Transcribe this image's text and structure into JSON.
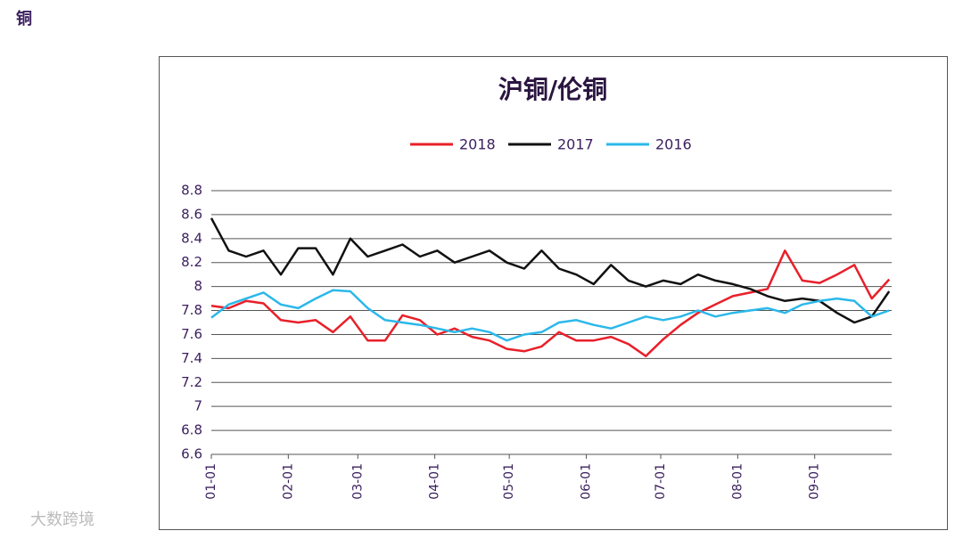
{
  "page_title": "铜",
  "watermark": "大数跨境",
  "chart_data": {
    "type": "line",
    "title": "沪铜/伦铜",
    "x": [
      "01-01",
      "01-08",
      "01-15",
      "01-22",
      "01-29",
      "02-05",
      "02-12",
      "02-19",
      "02-26",
      "03-05",
      "03-12",
      "03-19",
      "03-26",
      "04-02",
      "04-09",
      "04-16",
      "04-23",
      "04-30",
      "05-07",
      "05-14",
      "05-21",
      "05-28",
      "06-04",
      "06-11",
      "06-18",
      "06-25",
      "07-02",
      "07-09",
      "07-16",
      "07-23",
      "07-30",
      "08-06",
      "08-13",
      "08-20",
      "08-27",
      "09-03",
      "09-10",
      "09-17",
      "09-24",
      "10-01"
    ],
    "xlim": [
      "01-01",
      "10-02"
    ],
    "xticks": [
      "01-01",
      "02-01",
      "03-01",
      "04-01",
      "05-01",
      "06-01",
      "07-01",
      "08-01",
      "09-01"
    ],
    "ylim": [
      6.6,
      8.8
    ],
    "yticks": [
      8.8,
      8.6,
      8.4,
      8.2,
      8,
      7.8,
      7.6,
      7.4,
      7.2,
      7,
      6.8,
      6.6
    ],
    "grid": true,
    "legend": "top",
    "series": [
      {
        "name": "2018",
        "color": "#e8202a",
        "values": [
          7.84,
          7.82,
          7.88,
          7.86,
          7.72,
          7.7,
          7.72,
          7.62,
          7.75,
          7.55,
          7.55,
          7.76,
          7.72,
          7.6,
          7.65,
          7.58,
          7.55,
          7.48,
          7.46,
          7.5,
          7.62,
          7.55,
          7.55,
          7.58,
          7.52,
          7.42,
          7.56,
          7.68,
          7.78,
          7.85,
          7.92,
          7.95,
          7.98,
          8.3,
          8.05,
          8.03,
          8.1,
          8.18,
          7.9,
          8.06
        ]
      },
      {
        "name": "2017",
        "color": "#111111",
        "values": [
          8.57,
          8.3,
          8.25,
          8.3,
          8.1,
          8.32,
          8.32,
          8.1,
          8.4,
          8.25,
          8.3,
          8.35,
          8.25,
          8.3,
          8.2,
          8.25,
          8.3,
          8.2,
          8.15,
          8.3,
          8.15,
          8.1,
          8.02,
          8.18,
          8.05,
          8.0,
          8.05,
          8.02,
          8.1,
          8.05,
          8.02,
          7.98,
          7.92,
          7.88,
          7.9,
          7.88,
          7.78,
          7.7,
          7.75,
          7.96
        ]
      },
      {
        "name": "2016",
        "color": "#2bb8ea",
        "values": [
          7.74,
          7.85,
          7.9,
          7.95,
          7.85,
          7.82,
          7.9,
          7.97,
          7.96,
          7.82,
          7.72,
          7.7,
          7.68,
          7.65,
          7.62,
          7.65,
          7.62,
          7.55,
          7.6,
          7.62,
          7.7,
          7.72,
          7.68,
          7.65,
          7.7,
          7.75,
          7.72,
          7.75,
          7.8,
          7.75,
          7.78,
          7.8,
          7.82,
          7.78,
          7.85,
          7.88,
          7.9,
          7.88,
          7.75,
          7.8
        ]
      }
    ]
  }
}
